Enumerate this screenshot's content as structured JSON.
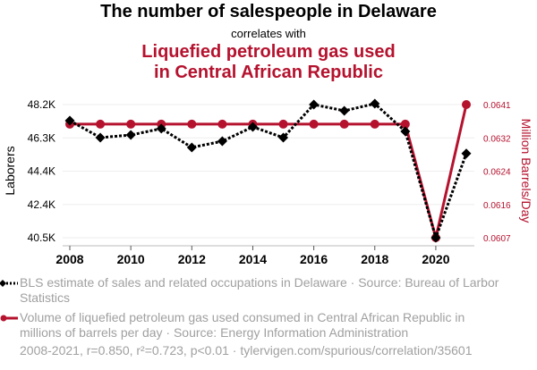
{
  "header": {
    "title": "The number of salespeople in Delaware",
    "subtitle": "correlates with",
    "title2_line1": "Liquefied petroleum gas used",
    "title2_line2": "in Central African Republic"
  },
  "legend": {
    "series1": "BLS estimate of sales and related occupations in Delaware · Source: Bureau of Larbor Statistics",
    "series2": "Volume of liquefied petroleum gas used consumed in Central African Republic in millions of barrels per day · Source: Energy Information Administration"
  },
  "footer": "2008-2021, r=0.850, r²=0.723, p<0.01 · tylervigen.com/spurious/correlation/35601",
  "colors": {
    "series1": "#000000",
    "series2": "#b5122e",
    "grid": "#eeeeee",
    "legend_text": "#a0a0a0"
  },
  "chart_data": {
    "type": "line",
    "x": [
      2008,
      2009,
      2010,
      2011,
      2012,
      2013,
      2014,
      2015,
      2016,
      2017,
      2018,
      2019,
      2020,
      2021
    ],
    "xticks": [
      "2008",
      "2010",
      "2012",
      "2014",
      "2016",
      "2018",
      "2020"
    ],
    "xlim": [
      2008,
      2021
    ],
    "ylabel_left": "Laborers",
    "ylabel_right": "Million Barrels/Day",
    "yticks_left": [
      "48.2K",
      "46.3K",
      "44.4K",
      "42.4K",
      "40.5K"
    ],
    "yticks_right": [
      "0.0641",
      "0.0632",
      "0.0624",
      "0.0616",
      "0.0607"
    ],
    "ylim_left": [
      40500,
      48200
    ],
    "ylim_right": [
      0.0607,
      0.0641
    ],
    "grid": true,
    "series": [
      {
        "name": "BLS estimate of sales and related occupations in Delaware",
        "axis": "left",
        "style": "dotted-diamond",
        "values": [
          47270,
          46290,
          46440,
          46810,
          45720,
          46080,
          46910,
          46290,
          48200,
          47840,
          48250,
          46650,
          40500,
          45370
        ]
      },
      {
        "name": "Volume of liquefied petroleum gas used consumed in Central African Republic",
        "axis": "right",
        "style": "solid-circle",
        "values": [
          0.0636,
          0.0636,
          0.0636,
          0.0636,
          0.0636,
          0.0636,
          0.0636,
          0.0636,
          0.0636,
          0.0636,
          0.0636,
          0.0636,
          0.0607,
          0.0641
        ]
      }
    ]
  }
}
